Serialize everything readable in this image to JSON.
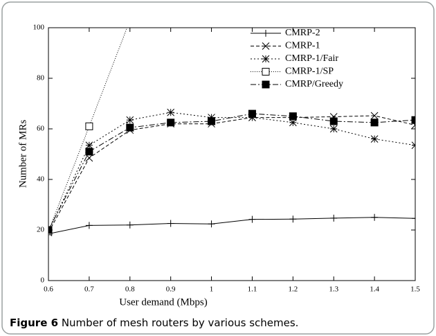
{
  "chart_data": {
    "type": "line",
    "x_label": "User demand (Mbps)",
    "y_label": "Number of MRs",
    "x": [
      0.6,
      0.7,
      0.8,
      0.9,
      1,
      1.1,
      1.2,
      1.3,
      1.4,
      1.5
    ],
    "xlim": [
      0.6,
      1.5
    ],
    "xticks": [
      0.6,
      0.7,
      0.8,
      0.9,
      1,
      1.1,
      1.2,
      1.3,
      1.4,
      1.5
    ],
    "ylim": [
      0,
      100
    ],
    "yticks": [
      0,
      20,
      40,
      60,
      80,
      100
    ],
    "legend": "upper right",
    "series": [
      {
        "name": "CMRP-2",
        "color": "#000000",
        "marker": "plus",
        "dash": "none",
        "values": [
          18.5,
          21.8,
          22,
          22.6,
          22.4,
          24.2,
          24.3,
          24.7,
          25,
          24.6
        ]
      },
      {
        "name": "CMRP-1",
        "color": "#000000",
        "marker": "cross",
        "dash": "5,3",
        "values": [
          19,
          48.5,
          59.5,
          62,
          62,
          64.5,
          64.5,
          64.8,
          65.2,
          61.5
        ]
      },
      {
        "name": "CMRP-1/Fair",
        "color": "#000000",
        "marker": "star",
        "dash": "2,3",
        "values": [
          19.5,
          53.5,
          63.5,
          66.5,
          64.5,
          64.5,
          62.5,
          60,
          56,
          53.5
        ]
      },
      {
        "name": "CMRP-1/SP",
        "color": "#000000",
        "marker": "open-square",
        "dash": "1,2",
        "values": [
          19.5,
          61,
          103,
          null,
          null,
          null,
          null,
          null,
          null,
          null
        ]
      },
      {
        "name": "CMRP/Greedy",
        "color": "#000000",
        "marker": "filled-square",
        "dash": "8,3,2,3",
        "values": [
          20,
          51,
          60.5,
          62.5,
          63,
          66,
          65,
          63,
          62.5,
          63.5
        ]
      }
    ]
  },
  "caption": {
    "label": "Figure 6",
    "text": "Number of mesh routers by various schemes."
  }
}
